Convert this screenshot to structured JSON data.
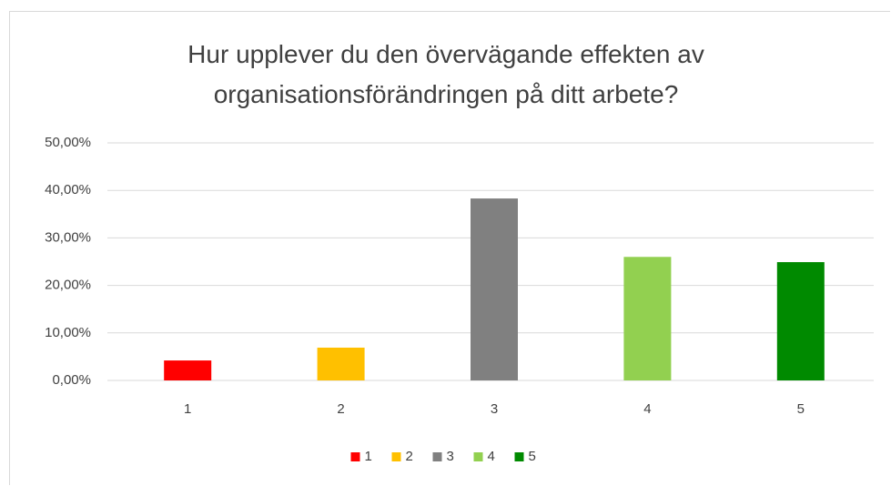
{
  "chart_data": {
    "type": "bar",
    "title": "Hur upplever du den övervägande effekten av organisationsförändringen på ditt arbete?",
    "categories": [
      "1",
      "2",
      "3",
      "4",
      "5"
    ],
    "values": [
      4.2,
      6.9,
      38.3,
      26.0,
      24.9
    ],
    "colors": [
      "#ff0000",
      "#ffc000",
      "#808080",
      "#92d050",
      "#008a00"
    ],
    "ylim": [
      0,
      50
    ],
    "yticks": [
      {
        "value": 0,
        "label": "0,00%"
      },
      {
        "value": 10,
        "label": "10,00%"
      },
      {
        "value": 20,
        "label": "20,00%"
      },
      {
        "value": 30,
        "label": "30,00%"
      },
      {
        "value": 40,
        "label": "40,00%"
      },
      {
        "value": 50,
        "label": "50,00%"
      }
    ],
    "grid": true,
    "legend": "bottom"
  }
}
